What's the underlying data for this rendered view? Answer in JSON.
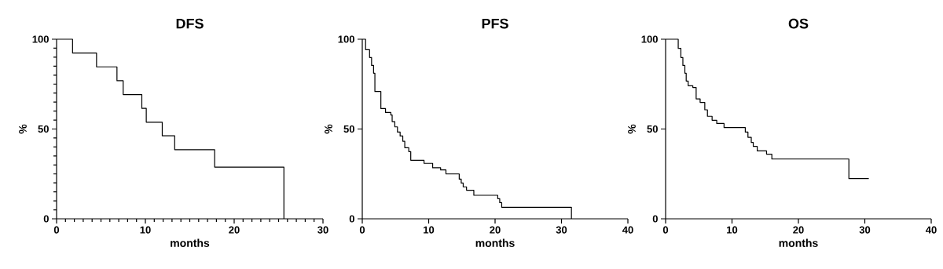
{
  "chart_data": [
    {
      "type": "step",
      "title": "DFS",
      "xlabel": "months",
      "ylabel": "%",
      "xlim": [
        0,
        30
      ],
      "ylim": [
        0,
        100
      ],
      "xticks": [
        0,
        10,
        20,
        30
      ],
      "yticks": [
        0,
        50,
        100
      ],
      "x": [
        0,
        1.8,
        4.5,
        6.8,
        7.5,
        9.6,
        10.1,
        11.9,
        13.3,
        17.8,
        25.6
      ],
      "series": [
        {
          "color": "#000000",
          "values": [
            100,
            92.3,
            84.6,
            76.9,
            69.2,
            61.5,
            53.8,
            46.2,
            38.5,
            28.8,
            0
          ]
        }
      ]
    },
    {
      "type": "step",
      "title": "PFS",
      "xlabel": "months",
      "ylabel": "%",
      "xlim": [
        0,
        40
      ],
      "ylim": [
        0,
        100
      ],
      "xticks": [
        0,
        10,
        20,
        30,
        40
      ],
      "yticks": [
        0,
        50,
        100
      ],
      "x": [
        0,
        0.5,
        1.1,
        1.4,
        1.7,
        1.9,
        2.8,
        3.5,
        4.3,
        4.5,
        4.9,
        5.3,
        5.7,
        6.1,
        6.4,
        7.0,
        7.3,
        9.3,
        10.6,
        11.8,
        12.6,
        14.6,
        14.9,
        15.2,
        15.7,
        16.8,
        20.4,
        20.7,
        21.0,
        31.5
      ],
      "series": [
        {
          "color": "#000000",
          "values": [
            100,
            94.2,
            89.8,
            85.4,
            81.1,
            70.9,
            61.4,
            59.2,
            57.8,
            54.1,
            51.2,
            48.3,
            46.1,
            43.2,
            39.6,
            37.4,
            32.6,
            30.9,
            28.4,
            27.2,
            25.0,
            22.1,
            19.9,
            17.8,
            15.9,
            13.1,
            11.2,
            9.0,
            6.4,
            0
          ]
        }
      ]
    },
    {
      "type": "step",
      "title": "OS",
      "xlabel": "months",
      "ylabel": "%",
      "xlim": [
        0,
        40
      ],
      "ylim": [
        0,
        100
      ],
      "xticks": [
        0,
        10,
        20,
        30,
        40
      ],
      "yticks": [
        0,
        50,
        100
      ],
      "x": [
        0,
        1.9,
        2.3,
        2.6,
        2.9,
        3.1,
        3.4,
        4.1,
        4.6,
        5.2,
        5.9,
        6.3,
        7.0,
        7.7,
        8.8,
        12.0,
        12.4,
        12.9,
        13.2,
        13.8,
        15.2,
        16.0,
        27.6,
        30.6
      ],
      "series": [
        {
          "color": "#000000",
          "values": [
            100,
            94.9,
            89.8,
            85.4,
            81.1,
            76.7,
            74.1,
            73.1,
            66.8,
            64.8,
            60.7,
            57.1,
            54.9,
            53.1,
            50.8,
            48.3,
            45.4,
            42.5,
            40.3,
            37.8,
            36.0,
            33.3,
            22.4,
            22.4
          ]
        }
      ]
    }
  ]
}
